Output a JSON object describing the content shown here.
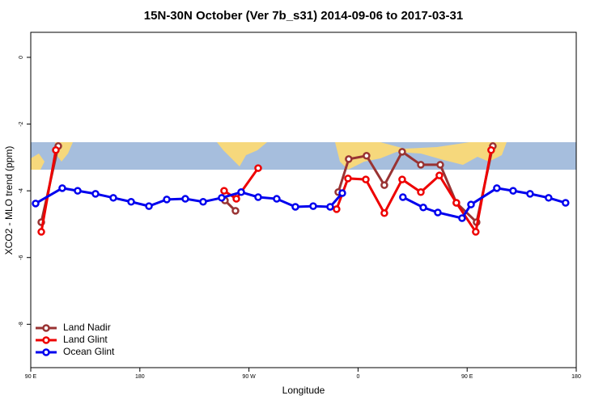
{
  "chart_data": {
    "type": "line",
    "title": "15N-30N October (Ver 7b_s31)   2014-09-06 to 2017-03-31",
    "x_label": "Longitude",
    "y_label": "XCO2 - MLO trend (ppm)",
    "xlim": [
      90,
      540
    ],
    "ylim": [
      -9.3,
      0.75
    ],
    "xticks": [
      {
        "value": 90,
        "label": "90 E"
      },
      180,
      {
        "value": 270,
        "label": "90 W"
      },
      {
        "value": 360,
        "label": "0"
      },
      {
        "value": 450,
        "label": "90 E"
      },
      {
        "value": 540,
        "label": "180"
      }
    ],
    "yticks": [
      0,
      -2,
      -4,
      -6,
      -8
    ],
    "legend": "bottom-left",
    "series": [
      {
        "name": "Land Nadir",
        "color": "#993333",
        "x": [
          98.7,
          112.7,
          null,
          250.2,
          258.9,
          null,
          343.7,
          352.3,
          367.0,
          381.7,
          396.4,
          411.8,
          427.8,
          441.1,
          457.8,
          471.2
        ],
        "values": [
          -4.94,
          -2.66,
          null,
          -4.29,
          -4.6,
          null,
          -4.04,
          -3.05,
          -2.95,
          -3.83,
          -2.83,
          -3.22,
          -3.22,
          -4.36,
          -4.94,
          -2.66
        ]
      },
      {
        "name": "Land Glint",
        "color": "#ee0000",
        "x": [
          98.7,
          110.7,
          null,
          249.5,
          259.6,
          277.6,
          null,
          342.3,
          351.7,
          366.4,
          381.7,
          396.4,
          411.8,
          427.1,
          441.1,
          457.1,
          469.8
        ],
        "values": [
          -5.23,
          -2.78,
          null,
          -4.0,
          -4.24,
          -3.32,
          null,
          -4.55,
          -3.63,
          -3.66,
          -4.67,
          -3.66,
          -4.04,
          -3.54,
          -4.36,
          -5.23,
          -2.78
        ]
      },
      {
        "name": "Ocean Glint",
        "color": "#0000ee",
        "x": [
          94.0,
          116.0,
          128.7,
          143.4,
          158.1,
          172.8,
          187.5,
          202.2,
          217.5,
          232.2,
          247.5,
          263.6,
          277.6,
          292.9,
          308.3,
          323.0,
          337.0,
          347.0,
          null,
          397.0,
          413.8,
          425.8,
          445.8,
          453.2,
          474.5,
          487.9,
          501.9,
          517.2,
          531.2
        ],
        "values": [
          -4.38,
          -3.92,
          -4.0,
          -4.09,
          -4.21,
          -4.33,
          -4.46,
          -4.26,
          -4.24,
          -4.33,
          -4.21,
          -4.04,
          -4.19,
          -4.24,
          -4.48,
          -4.46,
          -4.48,
          -4.07,
          null,
          -4.19,
          -4.5,
          -4.65,
          -4.82,
          -4.41,
          -3.92,
          -4.0,
          -4.09,
          -4.21,
          -4.36
        ]
      }
    ]
  }
}
